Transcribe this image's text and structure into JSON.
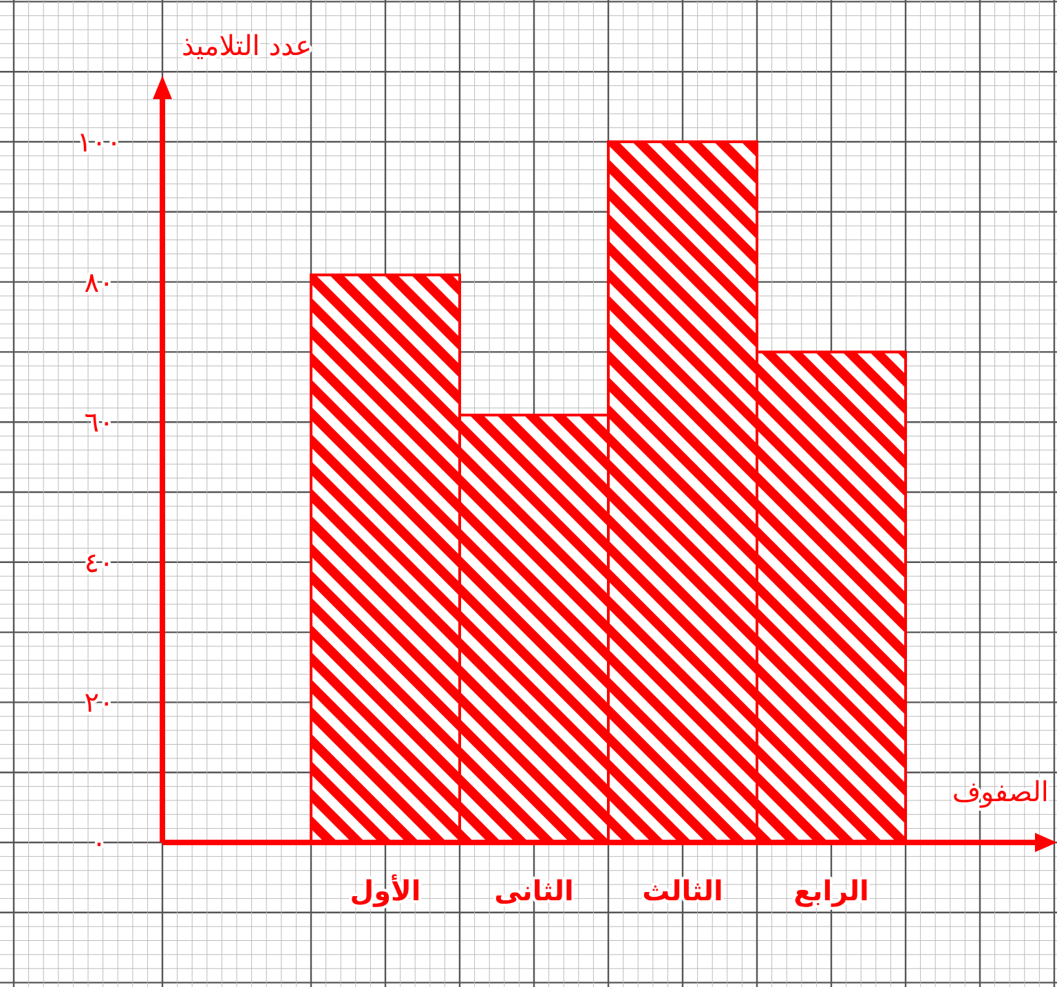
{
  "chart_data": {
    "type": "bar",
    "xlabel": "الصفوف",
    "ylabel": "عدد التلاميذ",
    "categories": [
      "الأول",
      "الثانى",
      "الثالث",
      "الرابع"
    ],
    "values": [
      81,
      61,
      100,
      70
    ],
    "color": "#ff0000",
    "ylim": [
      0,
      100
    ],
    "yticks": [
      {
        "value": 0,
        "label": "٠"
      },
      {
        "value": 20,
        "label": "٢٠"
      },
      {
        "value": 40,
        "label": "٤٠"
      },
      {
        "value": 60,
        "label": "٦٠"
      },
      {
        "value": 80,
        "label": "٨٠"
      },
      {
        "value": 100,
        "label": "١٠٠"
      }
    ],
    "grid": true
  }
}
